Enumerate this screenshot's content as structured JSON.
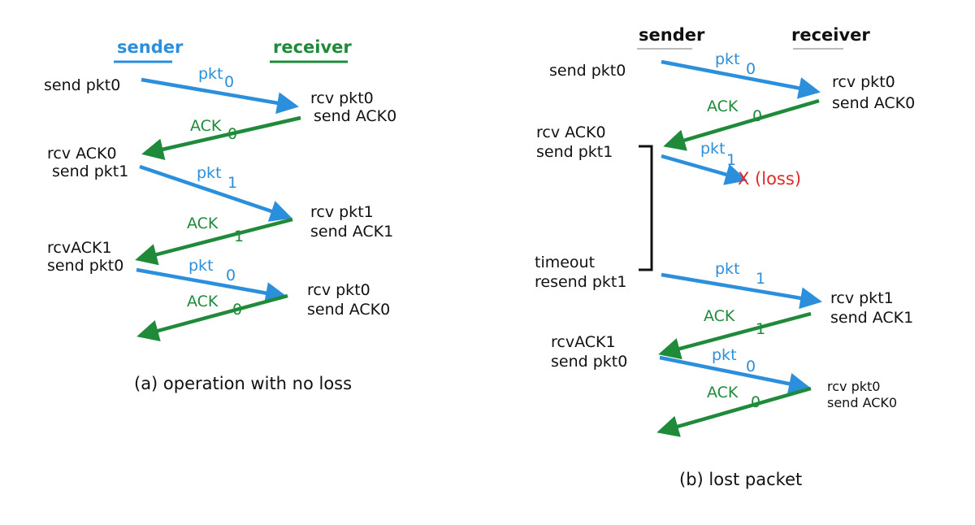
{
  "colors": {
    "pkt": "#2b8fdc",
    "ack": "#1f8a3a",
    "loss": "#e02a2a",
    "text": "#111111",
    "header_underline_right": "#bbbbbb"
  },
  "panel_a": {
    "sender_header": "sender",
    "receiver_header": "receiver",
    "caption": "(a) operation with no loss",
    "events": {
      "send_pkt0": "send pkt0",
      "rcv_pkt0_1": "rcv pkt0",
      "send_ack0_1": "send ACK0",
      "rcv_ack0": "rcv ACK0",
      "send_pkt1": "send pkt1",
      "rcv_pkt1": "rcv pkt1",
      "send_ack1": "send ACK1",
      "rcvack1": "rcvACK1",
      "send_pkt0_2": "send pkt0",
      "rcv_pkt0_2": "rcv pkt0",
      "send_ack0_2": "send ACK0"
    },
    "msgs": {
      "pkt0_a": "pkt",
      "pkt0_a_sub": "0",
      "ack0_a": "ACK",
      "ack0_a_sub": "0",
      "pkt1": "pkt",
      "pkt1_sub": "1",
      "ack1": "ACK",
      "ack1_sub": "1",
      "pkt0_b": "pkt",
      "pkt0_b_sub": "0",
      "ack0_b": "ACK",
      "ack0_b_sub": "0"
    }
  },
  "panel_b": {
    "sender_header": "sender",
    "receiver_header": "receiver",
    "caption": "(b) lost packet",
    "events": {
      "send_pkt0": "send pkt0",
      "rcv_pkt0_1": "rcv pkt0",
      "send_ack0_1": "send ACK0",
      "rcv_ack0": "rcv ACK0",
      "send_pkt1": "send pkt1",
      "loss": "X (loss)",
      "timeout": "timeout",
      "resend_pkt1": "resend pkt1",
      "rcv_pkt1": "rcv pkt1",
      "send_ack1": "send ACK1",
      "rcvack1": "rcvACK1",
      "send_pkt0_2": "send pkt0",
      "rcv_pkt0_2": "rcv pkt0",
      "send_ack0_2": "send ACK0"
    },
    "msgs": {
      "pkt0_a": "pkt",
      "pkt0_a_sub": "0",
      "ack0_a": "ACK",
      "ack0_a_sub": "0",
      "pkt1_lost": "pkt",
      "pkt1_lost_sub": "1",
      "pkt1_resent": "pkt",
      "pkt1_resent_sub": "1",
      "ack1": "ACK",
      "ack1_sub": "1",
      "pkt0_b": "pkt",
      "pkt0_b_sub": "0",
      "ack0_b": "ACK",
      "ack0_b_sub": "0"
    }
  }
}
